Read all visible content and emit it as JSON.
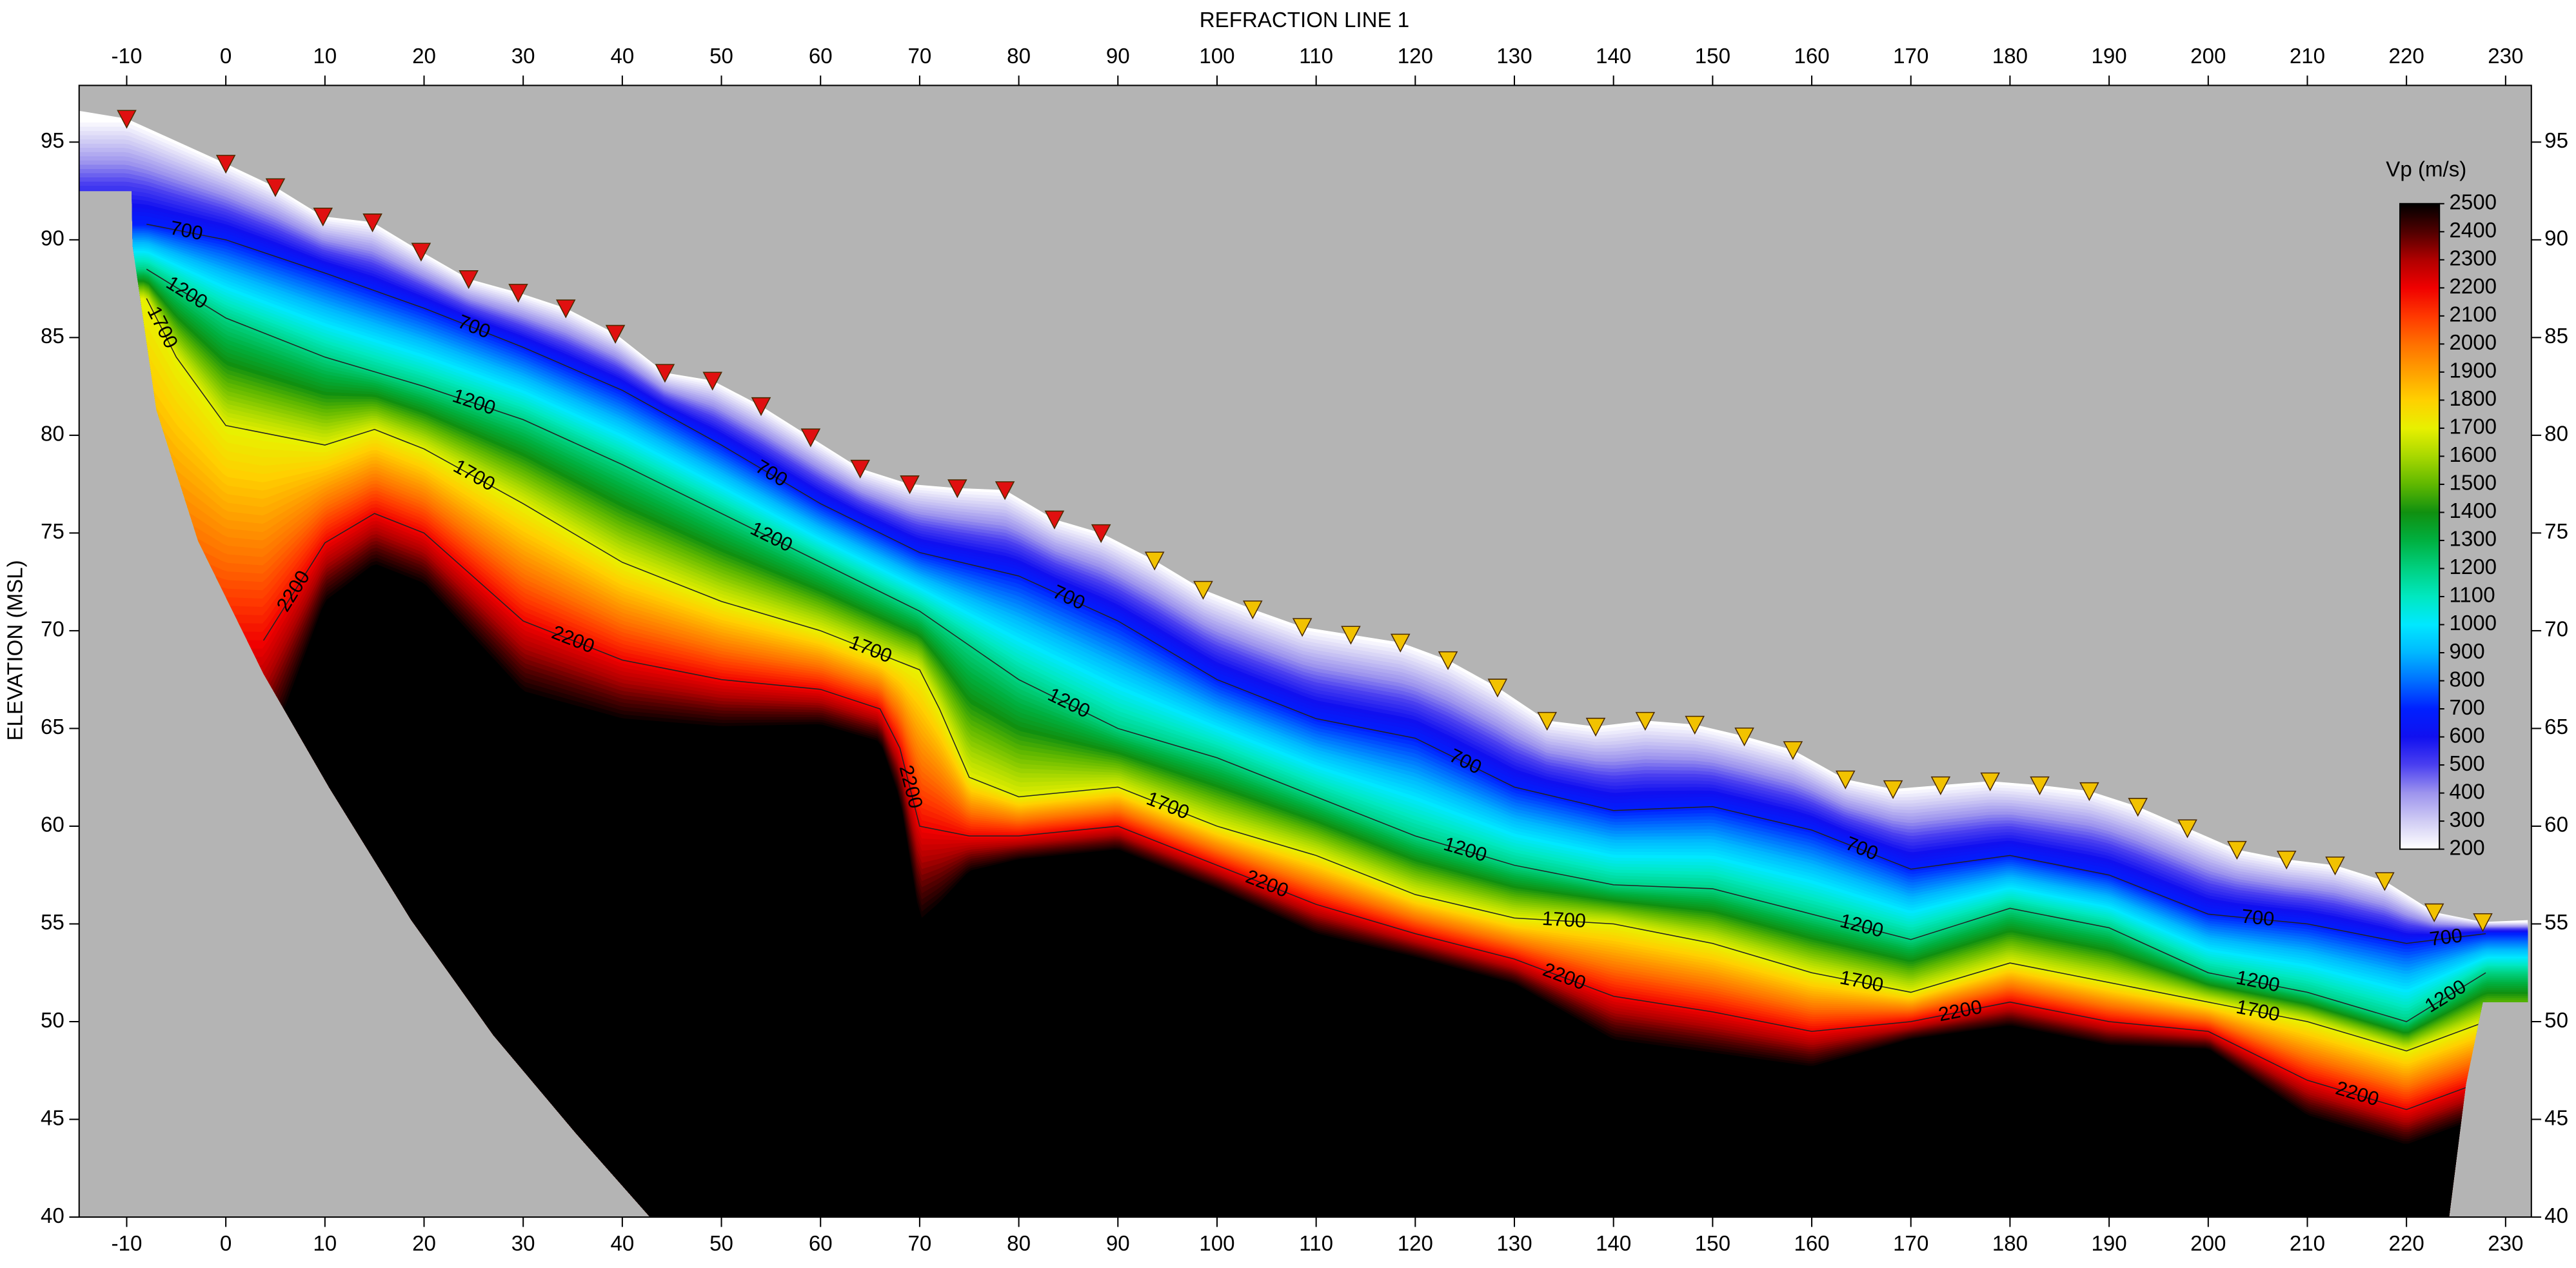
{
  "chart_data": {
    "type": "contour",
    "title": "REFRACTION LINE 1",
    "y_label": "ELEVATION (MSL)",
    "xlim": [
      -14.8,
      232.6
    ],
    "ylim": [
      40,
      97.9
    ],
    "xticks": [
      -10,
      0,
      10,
      20,
      30,
      40,
      50,
      60,
      70,
      80,
      90,
      100,
      110,
      120,
      130,
      140,
      150,
      160,
      170,
      180,
      190,
      200,
      210,
      220,
      230
    ],
    "yticks": [
      40,
      45,
      50,
      55,
      60,
      65,
      70,
      75,
      80,
      85,
      90,
      95
    ],
    "background": "#b4b4b4",
    "geophones": [
      {
        "color": "#e01010",
        "x": [
          -10,
          0,
          5,
          9.8,
          14.8,
          19.7,
          24.5,
          29.5,
          34.3,
          39.3,
          44.3,
          49.1,
          54,
          59,
          64,
          69,
          73.8,
          78.6,
          83.6,
          88.3
        ],
        "y": [
          96.2,
          93.9,
          92.7,
          91.2,
          90.9,
          89.4,
          88.0,
          87.3,
          86.5,
          85.2,
          83.2,
          82.8,
          81.5,
          79.9,
          78.3,
          77.5,
          77.3,
          77.2,
          75.7,
          75.0
        ]
      },
      {
        "color": "#f2c200",
        "x": [
          93.7,
          98.6,
          103.6,
          108.6,
          113.5,
          118.5,
          123.3,
          128.3,
          133.3,
          138.2,
          143.2,
          148.2,
          153.2,
          158.1,
          163.4,
          168.2,
          173,
          178,
          183,
          188,
          192.9,
          197.9,
          202.9,
          207.9,
          212.8,
          217.8,
          222.8,
          227.7
        ],
        "y": [
          73.6,
          72.1,
          71.1,
          70.2,
          69.8,
          69.4,
          68.5,
          67.1,
          65.4,
          65.1,
          65.4,
          65.2,
          64.6,
          63.9,
          62.4,
          61.9,
          62.1,
          62.3,
          62.1,
          61.8,
          61.0,
          59.9,
          58.8,
          58.3,
          58.0,
          57.2,
          55.6,
          55.1
        ]
      }
    ],
    "contours": [
      {
        "level": 700,
        "x": [
          -8,
          0,
          10,
          20,
          30,
          40,
          50,
          60,
          70,
          80,
          90,
          100,
          110,
          120,
          130,
          140,
          150,
          160,
          170,
          180,
          190,
          200,
          210,
          220,
          228
        ],
        "y": [
          90.8,
          90.0,
          88.3,
          86.5,
          84.5,
          82.3,
          79.5,
          76.5,
          74.0,
          72.8,
          70.5,
          67.5,
          65.5,
          64.5,
          62.0,
          60.8,
          61.0,
          59.8,
          57.8,
          58.5,
          57.5,
          55.5,
          55.0,
          54.0,
          54.5
        ]
      },
      {
        "level": 1200,
        "x": [
          -8,
          0,
          10,
          20,
          30,
          40,
          50,
          60,
          70,
          80,
          90,
          100,
          110,
          120,
          130,
          140,
          150,
          160,
          170,
          180,
          190,
          200,
          210,
          220,
          228
        ],
        "y": [
          88.5,
          86.0,
          84.0,
          82.5,
          80.8,
          78.5,
          76.0,
          73.5,
          71.0,
          67.5,
          65.0,
          63.5,
          61.5,
          59.5,
          58.0,
          57.0,
          56.8,
          55.5,
          54.2,
          55.8,
          54.8,
          52.5,
          51.5,
          50.0,
          52.5
        ]
      },
      {
        "level": 1700,
        "x": [
          -8,
          -5,
          0,
          10,
          15,
          20,
          30,
          40,
          50,
          60,
          70,
          72,
          75,
          80,
          90,
          100,
          110,
          120,
          130,
          140,
          150,
          160,
          170,
          180,
          190,
          200,
          210,
          220,
          228
        ],
        "y": [
          87,
          84,
          80.5,
          79.5,
          80.3,
          79.3,
          76.5,
          73.5,
          71.5,
          70,
          68,
          66,
          62.5,
          61.5,
          62,
          60,
          58.5,
          56.5,
          55.3,
          55,
          54,
          52.5,
          51.5,
          53,
          52,
          51,
          50,
          48.5,
          50
        ]
      },
      {
        "level": 2200,
        "x": [
          3.8,
          10,
          15,
          20,
          30,
          40,
          50,
          60,
          66,
          68,
          70,
          75,
          80,
          90,
          100,
          110,
          120,
          130,
          140,
          150,
          160,
          170,
          180,
          190,
          200,
          210,
          220,
          228
        ],
        "y": [
          69.5,
          74.5,
          76,
          75,
          70.5,
          68.5,
          67.5,
          67,
          66,
          64,
          60,
          59.5,
          59.5,
          60,
          58,
          56,
          54.5,
          53.2,
          51.3,
          50.5,
          49.5,
          50,
          51,
          50,
          49.5,
          47,
          45.5,
          47
        ]
      }
    ],
    "left_edge": {
      "x": [
        -14.8,
        -14.8,
        -9.5,
        -9.4,
        -7,
        -2.8,
        3.8,
        10.4,
        18.7,
        27,
        35.3,
        42.8
      ],
      "y": [
        96.6,
        92.5,
        92.5,
        89.7,
        81.3,
        74.6,
        67.8,
        62,
        55.2,
        49.3,
        44.3,
        40
      ]
    },
    "right_edge": {
      "x": [
        224.3,
        226,
        227.7,
        232.6,
        232.6
      ],
      "y": [
        40,
        46.8,
        51,
        51,
        55.2
      ]
    },
    "colorbar": {
      "title": "Vp (m/s)",
      "ticks": [
        200,
        300,
        400,
        500,
        600,
        700,
        800,
        900,
        1000,
        1100,
        1200,
        1300,
        1400,
        1500,
        1600,
        1700,
        1800,
        1900,
        2000,
        2100,
        2200,
        2300,
        2400,
        2500
      ],
      "colors": [
        "#ffffff",
        "#d0ccf4",
        "#9d94ee",
        "#4a3ff0",
        "#1010f0",
        "#0020ff",
        "#0070ff",
        "#00b8ff",
        "#00e8ff",
        "#00e8c0",
        "#00d080",
        "#00b040",
        "#109010",
        "#60b800",
        "#a8d800",
        "#e8f000",
        "#ffd000",
        "#ffa000",
        "#ff7000",
        "#ff3800",
        "#f00000",
        "#b00000",
        "#500000",
        "#000000"
      ]
    }
  }
}
